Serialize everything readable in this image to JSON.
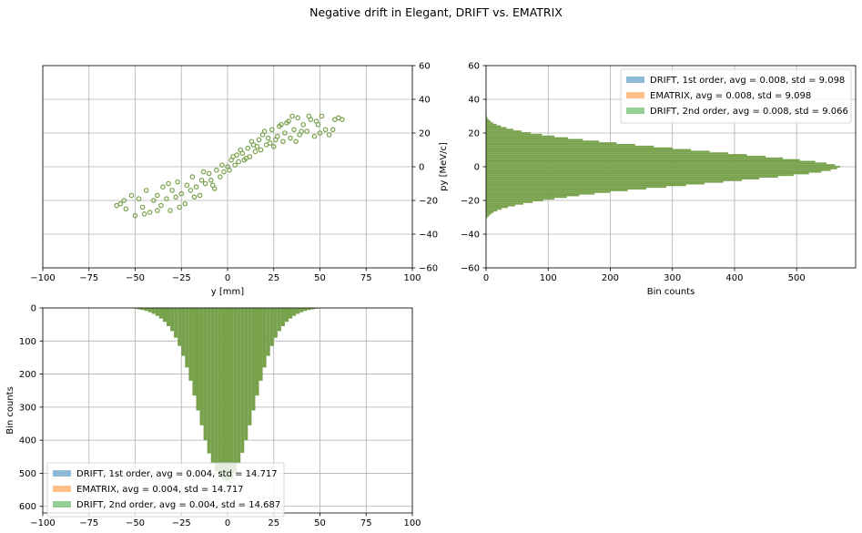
{
  "figure": {
    "title": "Negative drift in Elegant, DRIFT vs. EMATRIX"
  },
  "colors": {
    "blue": "#1f77b4",
    "orange": "#ff7f0e",
    "green": "#2ca02c",
    "overlap": "#77a14a",
    "grid": "#b0b0b0"
  },
  "chart_data": [
    {
      "id": "phase_space",
      "type": "scatter",
      "title": "",
      "xlabel": "y [mm]",
      "ylabel": "py [MeV/c]",
      "xlim": [
        -100,
        100
      ],
      "ylim": [
        -60,
        60
      ],
      "x_ticks": [
        -100,
        -75,
        -50,
        -25,
        0,
        25,
        50,
        75,
        100
      ],
      "y_ticks": [
        -60,
        -40,
        -20,
        0,
        20,
        40,
        60
      ],
      "y_axis_side": "right",
      "grid": true,
      "marker": "open circle",
      "series": [
        {
          "points": [
            [
              -58,
              -22
            ],
            [
              -55,
              -25
            ],
            [
              -52,
              -17
            ],
            [
              -50,
              -29
            ],
            [
              -48,
              -19
            ],
            [
              -46,
              -24
            ],
            [
              -44,
              -14
            ],
            [
              -42,
              -27
            ],
            [
              -40,
              -20
            ],
            [
              -38,
              -17
            ],
            [
              -36,
              -23
            ],
            [
              -35,
              -12
            ],
            [
              -33,
              -19
            ],
            [
              -31,
              -26
            ],
            [
              -30,
              -14
            ],
            [
              -28,
              -18
            ],
            [
              -27,
              -9
            ],
            [
              -25,
              -16
            ],
            [
              -23,
              -22
            ],
            [
              -22,
              -11
            ],
            [
              -20,
              -14
            ],
            [
              -19,
              -6
            ],
            [
              -17,
              -12
            ],
            [
              -15,
              -17
            ],
            [
              -14,
              -8
            ],
            [
              -12,
              -10
            ],
            [
              -10,
              -4
            ],
            [
              -9,
              -8
            ],
            [
              -7,
              -13
            ],
            [
              -6,
              -2
            ],
            [
              -4,
              -6
            ],
            [
              -3,
              1
            ],
            [
              -2,
              -3
            ],
            [
              0,
              0
            ],
            [
              1,
              -2
            ],
            [
              2,
              4
            ],
            [
              4,
              1
            ],
            [
              5,
              7
            ],
            [
              6,
              3
            ],
            [
              8,
              8
            ],
            [
              9,
              4
            ],
            [
              11,
              11
            ],
            [
              12,
              6
            ],
            [
              14,
              13
            ],
            [
              15,
              9
            ],
            [
              17,
              16
            ],
            [
              18,
              10
            ],
            [
              19,
              19
            ],
            [
              21,
              13
            ],
            [
              22,
              17
            ],
            [
              24,
              22
            ],
            [
              25,
              12
            ],
            [
              27,
              18
            ],
            [
              28,
              24
            ],
            [
              30,
              15
            ],
            [
              31,
              20
            ],
            [
              33,
              27
            ],
            [
              34,
              17
            ],
            [
              36,
              22
            ],
            [
              38,
              29
            ],
            [
              39,
              19
            ],
            [
              41,
              25
            ],
            [
              43,
              21
            ],
            [
              45,
              28
            ],
            [
              47,
              18
            ],
            [
              49,
              25
            ],
            [
              51,
              30
            ],
            [
              53,
              22
            ],
            [
              55,
              19
            ],
            [
              58,
              28
            ],
            [
              60,
              29
            ],
            [
              62,
              28
            ],
            [
              -60,
              -23
            ],
            [
              -56,
              -20
            ],
            [
              -45,
              -28
            ],
            [
              -38,
              -26
            ],
            [
              -32,
              -10
            ],
            [
              -26,
              -24
            ],
            [
              -18,
              -18
            ],
            [
              -13,
              -3
            ],
            [
              -8,
              -11
            ],
            [
              3,
              6
            ],
            [
              7,
              10
            ],
            [
              10,
              5
            ],
            [
              13,
              15
            ],
            [
              16,
              12
            ],
            [
              20,
              21
            ],
            [
              23,
              14
            ],
            [
              26,
              16
            ],
            [
              29,
              25
            ],
            [
              32,
              26
            ],
            [
              35,
              30
            ],
            [
              37,
              15
            ],
            [
              40,
              21
            ],
            [
              44,
              30
            ],
            [
              48,
              27
            ],
            [
              50,
              20
            ],
            [
              57,
              22
            ]
          ]
        }
      ]
    },
    {
      "id": "py_histogram",
      "type": "bar",
      "orientation": "horizontal",
      "title": "",
      "xlabel": "Bin counts",
      "ylabel": "",
      "xlim": [
        0,
        595
      ],
      "ylim": [
        -60,
        60
      ],
      "x_ticks": [
        0,
        100,
        200,
        300,
        400,
        500
      ],
      "y_ticks": [
        -60,
        -40,
        -20,
        0,
        20,
        40,
        60
      ],
      "grid": true,
      "legend": "top-right",
      "legend_entries": [
        "DRIFT, 1st order, avg = 0.008, std = 9.098",
        "EMATRIX, avg = 0.008, std = 9.098",
        "DRIFT, 2nd order, avg = 0.008, std = 9.066"
      ],
      "bin_width": 1,
      "bins": [
        -30,
        -29,
        -28,
        -27,
        -26,
        -25,
        -24,
        -23,
        -22,
        -21,
        -20,
        -19,
        -18,
        -17,
        -16,
        -15,
        -14,
        -13,
        -12,
        -11,
        -10,
        -9,
        -8,
        -7,
        -6,
        -5,
        -4,
        -3,
        -2,
        -1,
        0,
        1,
        2,
        3,
        4,
        5,
        6,
        7,
        8,
        9,
        10,
        11,
        12,
        13,
        14,
        15,
        16,
        17,
        18,
        19,
        20,
        21,
        22,
        23,
        24,
        25,
        26,
        27,
        28,
        29,
        30
      ],
      "counts": [
        2,
        5,
        8,
        12,
        18,
        25,
        35,
        47,
        60,
        75,
        92,
        110,
        130,
        150,
        175,
        200,
        228,
        258,
        290,
        322,
        352,
        382,
        412,
        440,
        470,
        495,
        520,
        540,
        555,
        565,
        570,
        562,
        548,
        530,
        505,
        478,
        450,
        420,
        390,
        360,
        330,
        300,
        270,
        240,
        210,
        182,
        156,
        132,
        110,
        90,
        72,
        57,
        44,
        33,
        24,
        17,
        11,
        7,
        4,
        2,
        1
      ]
    },
    {
      "id": "y_histogram",
      "type": "bar",
      "orientation": "vertical",
      "title": "",
      "xlabel": "",
      "ylabel": "Bin counts",
      "xlim": [
        -100,
        100
      ],
      "ylim": [
        0,
        620
      ],
      "y_inverted": true,
      "x_ticks": [
        -100,
        -75,
        -50,
        -25,
        0,
        25,
        50,
        75,
        100
      ],
      "y_ticks": [
        0,
        100,
        200,
        300,
        400,
        500,
        600
      ],
      "grid": true,
      "legend": "lower-left",
      "legend_entries": [
        "DRIFT, 1st order, avg = 0.004, std = 14.717",
        "EMATRIX, avg = 0.004, std = 14.717",
        "DRIFT, 2nd order, avg = 0.004, std = 14.687"
      ],
      "bin_width": 2,
      "bins": [
        -50,
        -48,
        -46,
        -44,
        -42,
        -40,
        -38,
        -36,
        -34,
        -32,
        -30,
        -28,
        -26,
        -24,
        -22,
        -20,
        -18,
        -16,
        -14,
        -12,
        -10,
        -8,
        -6,
        -4,
        -2,
        0,
        2,
        4,
        6,
        8,
        10,
        12,
        14,
        16,
        18,
        20,
        22,
        24,
        26,
        28,
        30,
        32,
        34,
        36,
        38,
        40,
        42,
        44,
        46,
        48,
        50
      ],
      "counts": [
        2,
        4,
        6,
        9,
        13,
        18,
        24,
        32,
        42,
        55,
        70,
        90,
        115,
        145,
        180,
        220,
        265,
        310,
        355,
        400,
        440,
        470,
        495,
        512,
        520,
        522,
        515,
        498,
        470,
        438,
        400,
        355,
        310,
        265,
        220,
        180,
        145,
        115,
        90,
        70,
        55,
        42,
        32,
        24,
        18,
        13,
        9,
        6,
        4,
        2,
        1
      ]
    }
  ]
}
